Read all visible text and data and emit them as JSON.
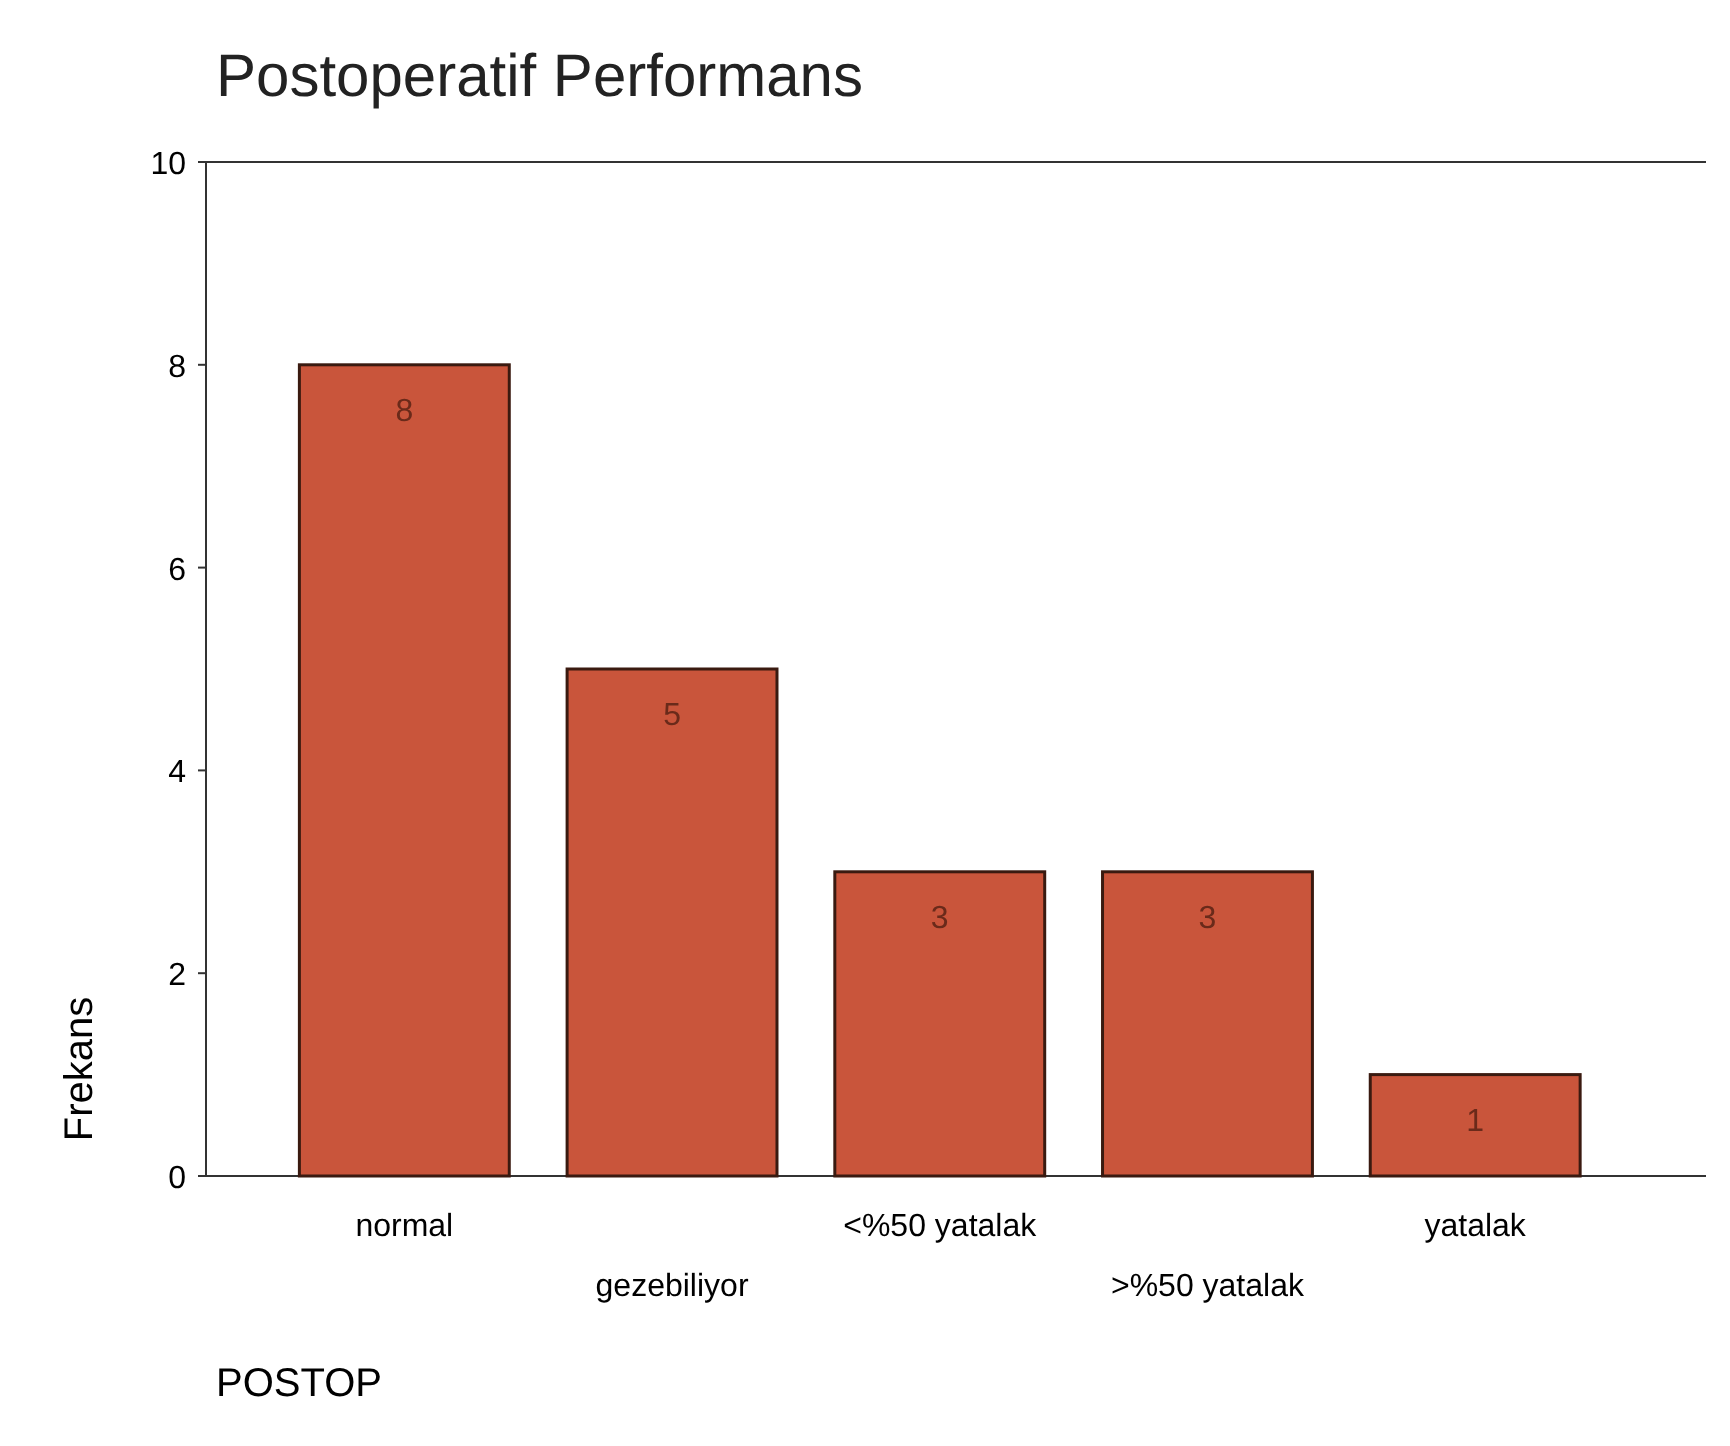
{
  "chart_data": {
    "type": "bar",
    "title": "Postoperatif Performans",
    "xlabel": "POSTOP",
    "ylabel": "Frekans",
    "categories": [
      "normal",
      "gezebiliyor",
      "<%50 yatalak",
      ">%50 yatalak",
      "yatalak"
    ],
    "values": [
      8,
      5,
      3,
      3,
      1
    ],
    "color": "#c9553b",
    "data_labels": true,
    "ylim": [
      0,
      10
    ],
    "yticks": [
      0,
      2,
      4,
      6,
      8,
      10
    ],
    "grid": false
  }
}
